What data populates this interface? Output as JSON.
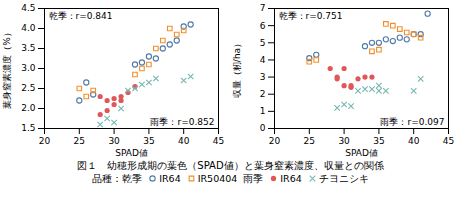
{
  "title": "図１　幼穂形成期の葉色（SPAD値）と葉身窒素濃度、収量との関係",
  "chart_data": [
    {
      "type": "scatter",
      "xlabel": "SPAD値",
      "ylabel": "葉身窒素濃度（%）",
      "xlim": [
        20,
        45
      ],
      "ylim": [
        1.5,
        4.5
      ],
      "xticks": [
        20,
        25,
        30,
        35,
        40,
        45
      ],
      "yticks": [
        1.5,
        2.0,
        2.5,
        3.0,
        3.5,
        4.0,
        4.5
      ],
      "annotations": [
        "乾季：r=0.841",
        "雨季：r=0.852"
      ],
      "series": [
        {
          "name": "IR64",
          "group": "品種：乾季",
          "marker": "open-circle",
          "values": [
            [
              25,
              2.2
            ],
            [
              26,
              2.65
            ],
            [
              27,
              2.35
            ],
            [
              38,
              3.6
            ],
            [
              39,
              3.7
            ],
            [
              40,
              4.05
            ],
            [
              41,
              4.1
            ],
            [
              33,
              3.1
            ],
            [
              34,
              3.15
            ],
            [
              35,
              3.3
            ],
            [
              36,
              3.25
            ],
            [
              37,
              3.5
            ]
          ]
        },
        {
          "name": "IR50404",
          "group": "品種：乾季",
          "marker": "open-square",
          "values": [
            [
              25,
              2.5
            ],
            [
              26,
              2.3
            ],
            [
              27,
              2.45
            ],
            [
              38,
              4.0
            ],
            [
              39,
              3.85
            ],
            [
              40,
              3.95
            ],
            [
              33,
              2.85
            ],
            [
              34,
              3.0
            ],
            [
              35,
              3.1
            ],
            [
              36,
              3.5
            ],
            [
              37,
              3.7
            ]
          ]
        },
        {
          "name": "IR64",
          "group": "雨季",
          "marker": "circle",
          "values": [
            [
              28,
              2.3
            ],
            [
              29,
              2.2
            ],
            [
              30,
              2.1
            ],
            [
              30,
              2.25
            ],
            [
              31,
              2.3
            ],
            [
              31,
              2.2
            ],
            [
              32,
              2.4
            ],
            [
              33,
              2.55
            ],
            [
              28,
              1.85
            ],
            [
              29,
              1.95
            ]
          ]
        },
        {
          "name": "チヨニシキ",
          "group": "雨季",
          "marker": "x",
          "values": [
            [
              28,
              1.6
            ],
            [
              29,
              1.75
            ],
            [
              30,
              1.65
            ],
            [
              31,
              2.0
            ],
            [
              32,
              2.45
            ],
            [
              33,
              2.5
            ],
            [
              34,
              2.6
            ],
            [
              35,
              2.65
            ],
            [
              36,
              2.75
            ],
            [
              40,
              2.7
            ],
            [
              41,
              2.8
            ]
          ]
        }
      ]
    },
    {
      "type": "scatter",
      "xlabel": "SPAD値",
      "ylabel": "収量（籾/ha）",
      "xlim": [
        20,
        45
      ],
      "ylim": [
        0,
        7
      ],
      "xticks": [
        20,
        25,
        30,
        35,
        40,
        45
      ],
      "yticks": [
        0,
        1,
        2,
        3,
        4,
        5,
        6,
        7
      ],
      "annotations": [
        "乾季：r=0.751",
        "雨季：r=0.097"
      ],
      "series": [
        {
          "name": "IR64",
          "group": "品種：乾季",
          "marker": "open-circle",
          "values": [
            [
              25,
              4.1
            ],
            [
              26,
              4.3
            ],
            [
              35,
              5.0
            ],
            [
              36,
              5.2
            ],
            [
              37,
              5.1
            ],
            [
              38,
              5.3
            ],
            [
              39,
              5.2
            ],
            [
              40,
              5.5
            ],
            [
              41,
              5.5
            ],
            [
              42,
              6.7
            ],
            [
              33,
              4.8
            ],
            [
              34,
              5.0
            ]
          ]
        },
        {
          "name": "IR50404",
          "group": "品種：乾季",
          "marker": "open-square",
          "values": [
            [
              25,
              3.9
            ],
            [
              26,
              4.0
            ],
            [
              36,
              6.1
            ],
            [
              37,
              6.0
            ],
            [
              38,
              5.8
            ],
            [
              39,
              5.6
            ],
            [
              40,
              5.5
            ],
            [
              41,
              5.3
            ],
            [
              34,
              4.5
            ],
            [
              35,
              4.6
            ]
          ]
        },
        {
          "name": "IR64",
          "group": "雨季",
          "marker": "circle",
          "values": [
            [
              28,
              3.5
            ],
            [
              29,
              2.9
            ],
            [
              30,
              2.5
            ],
            [
              31,
              2.4
            ],
            [
              31,
              2.5
            ],
            [
              32,
              2.9
            ],
            [
              33,
              3.0
            ],
            [
              34,
              3.0
            ],
            [
              30,
              3.5
            ],
            [
              29,
              3.0
            ]
          ]
        },
        {
          "name": "チヨニシキ",
          "group": "雨季",
          "marker": "x",
          "values": [
            [
              29,
              1.2
            ],
            [
              30,
              1.4
            ],
            [
              31,
              1.3
            ],
            [
              32,
              2.2
            ],
            [
              33,
              2.3
            ],
            [
              34,
              2.3
            ],
            [
              35,
              2.2
            ],
            [
              36,
              2.2
            ],
            [
              35,
              2.5
            ],
            [
              40,
              2.2
            ],
            [
              41,
              2.9
            ]
          ]
        }
      ]
    }
  ]
}
